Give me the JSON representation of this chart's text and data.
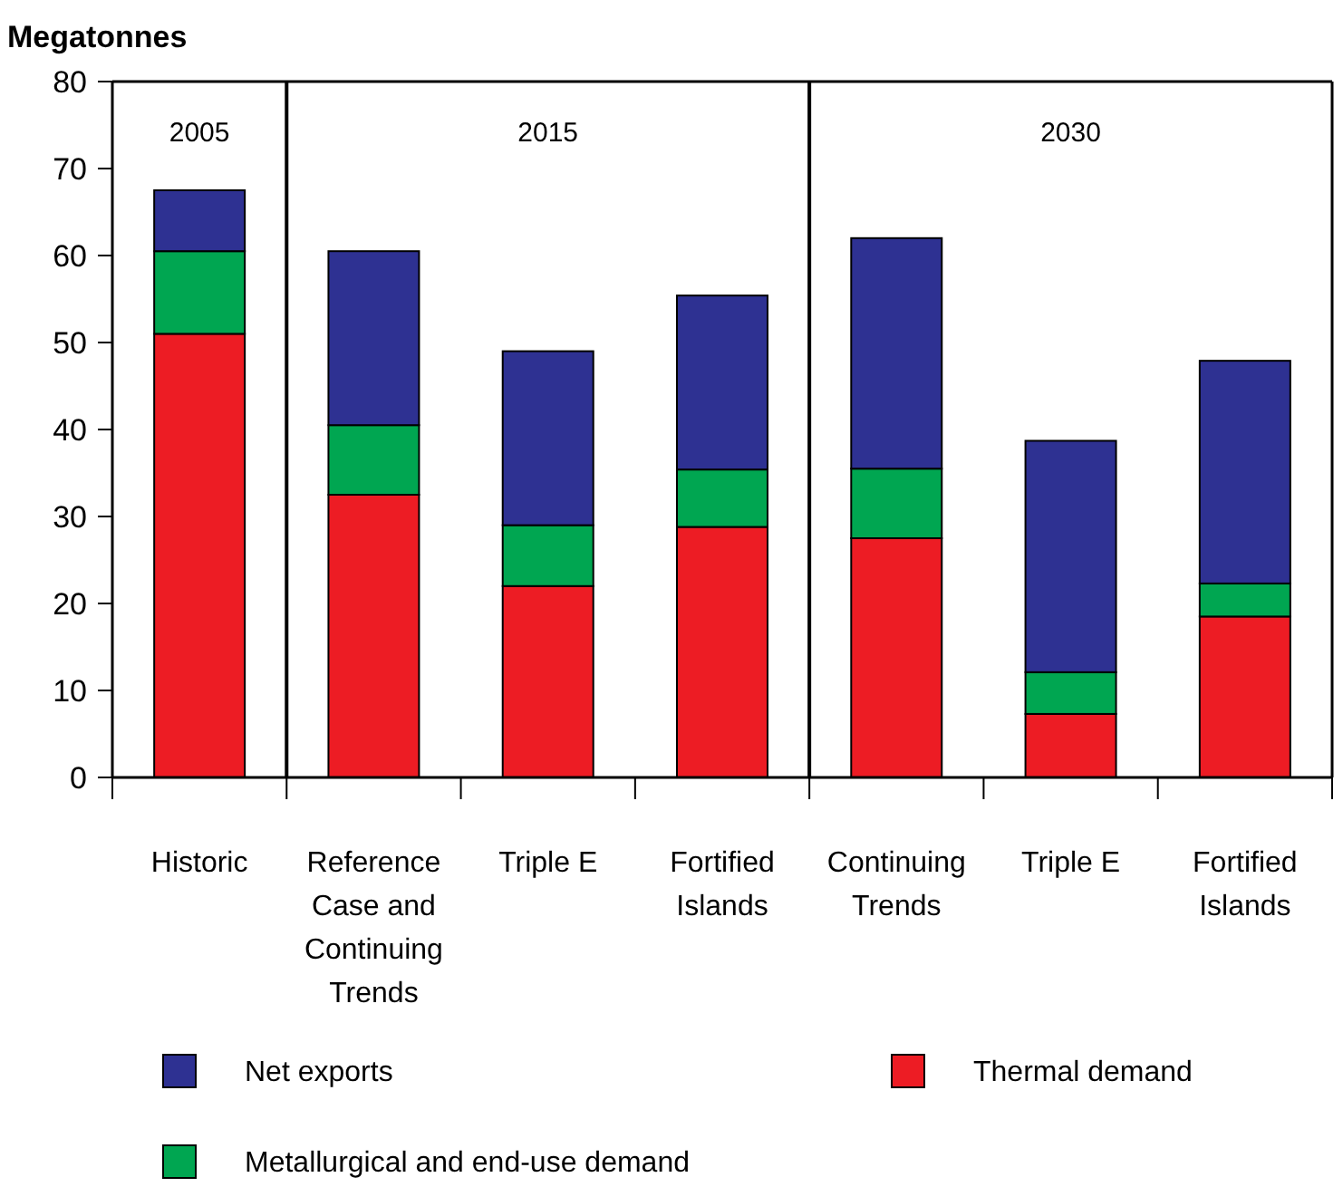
{
  "chart_data": {
    "type": "bar",
    "stacked": true,
    "ylabel": "Megatonnes",
    "categories": [
      "Historic",
      "Reference Case and Continuing Trends",
      "Triple E",
      "Fortified Islands",
      "Continuing Trends",
      "Triple E",
      "Fortified Islands"
    ],
    "series": [
      {
        "name": "Thermal demand",
        "color": "#ed1c24",
        "values": [
          51,
          32.5,
          22,
          28.8,
          27.5,
          7.3,
          18.5
        ]
      },
      {
        "name": "Metallurgical and end-use demand",
        "color": "#00a651",
        "values": [
          9.5,
          8,
          7,
          6.6,
          8,
          4.8,
          3.8
        ]
      },
      {
        "name": "Net exports",
        "color": "#2e3192",
        "values": [
          7,
          20,
          20,
          20,
          26.5,
          26.6,
          25.6
        ]
      }
    ],
    "ylim": [
      0,
      80
    ],
    "yticks": [
      0,
      10,
      20,
      30,
      40,
      50,
      60,
      70,
      80
    ],
    "annotations": [
      "2005",
      "2015",
      "2030"
    ],
    "legend": "bottom",
    "grid": false
  }
}
